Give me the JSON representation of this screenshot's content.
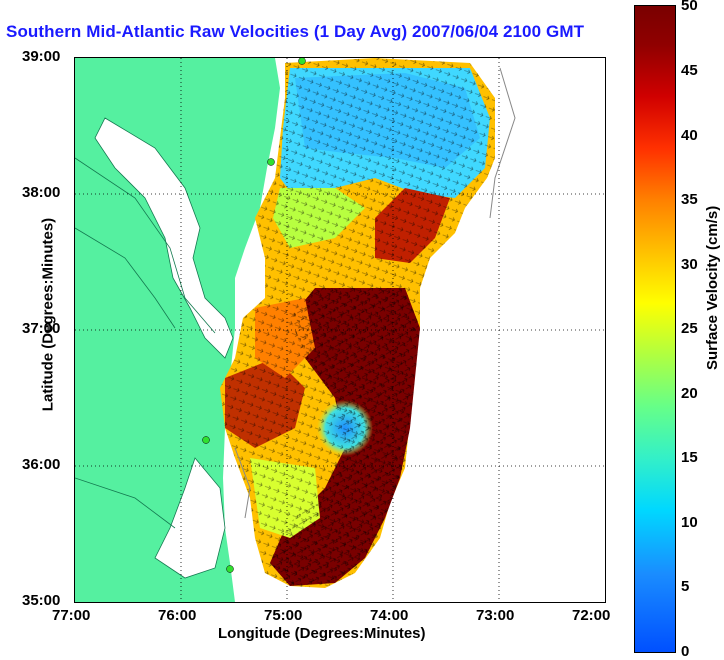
{
  "title": "Southern Mid-Atlantic Raw Velocities (1 Day Avg) 2007/06/04 2100 GMT",
  "axes": {
    "xlabel": "Longitude (Degrees:Minutes)",
    "ylabel": "Latitude (Degrees:Minutes)",
    "x_ticks": [
      "77:00",
      "76:00",
      "75:00",
      "74:00",
      "73:00",
      "72:00"
    ],
    "y_ticks": [
      "39:00",
      "38:00",
      "37:00",
      "36:00",
      "35:00"
    ]
  },
  "colorbar": {
    "label": "Surface Velocity (cm/s)",
    "ticks": [
      "50",
      "45",
      "40",
      "35",
      "30",
      "25",
      "20",
      "15",
      "10",
      "5",
      "0"
    ],
    "range": [
      0,
      50
    ]
  },
  "colors": {
    "land": "#55f0a0",
    "title": "#1a1aff",
    "water": "#ffffff"
  }
}
